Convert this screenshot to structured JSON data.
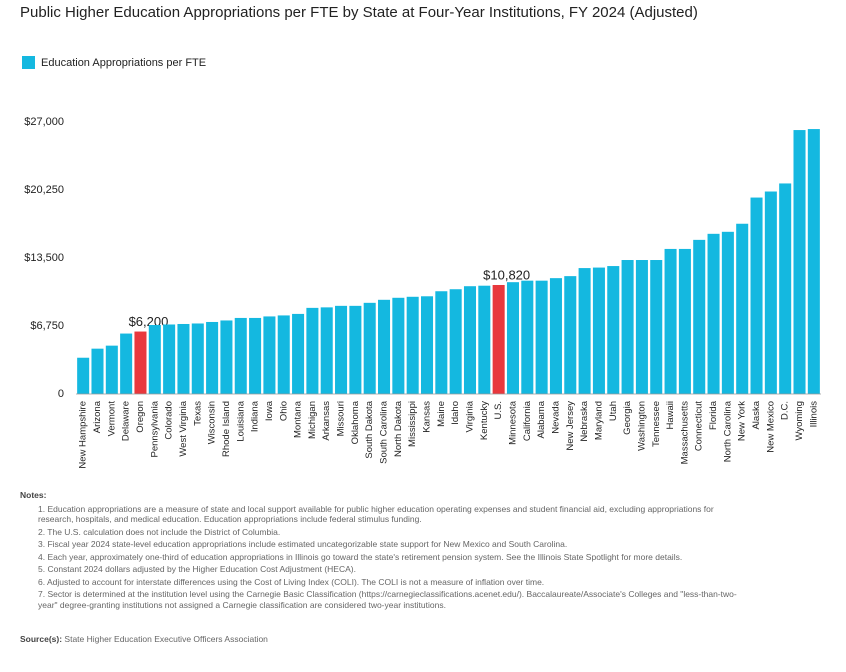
{
  "chart_data": {
    "type": "bar",
    "title": "Public Higher Education Appropriations per FTE by State at Four-Year Institutions, FY 2024 (Adjusted)",
    "categories": [
      "New Hampshire",
      "Arizona",
      "Vermont",
      "Delaware",
      "Oregon",
      "Pennsylvania",
      "Colorado",
      "West Virginia",
      "Texas",
      "Wisconsin",
      "Rhode Island",
      "Louisiana",
      "Indiana",
      "Iowa",
      "Ohio",
      "Montana",
      "Michigan",
      "Arkansas",
      "Missouri",
      "Oklahoma",
      "South Dakota",
      "South Carolina",
      "North Dakota",
      "Mississippi",
      "Kansas",
      "Maine",
      "Idaho",
      "Virginia",
      "Kentucky",
      "U.S.",
      "Minnesota",
      "California",
      "Alabama",
      "Nevada",
      "New Jersey",
      "Nebraska",
      "Maryland",
      "Utah",
      "Georgia",
      "Washington",
      "Tennessee",
      "Hawaii",
      "Massachusetts",
      "Connecticut",
      "Florida",
      "North Carolina",
      "New York",
      "Alaska",
      "New Mexico",
      "D.C.",
      "Wyoming",
      "Illinois"
    ],
    "series": [
      {
        "name": "Education Appropriations per FTE",
        "color": "#14b8e0",
        "values": [
          3600,
          4500,
          4800,
          6000,
          6200,
          6850,
          6900,
          6950,
          7000,
          7150,
          7300,
          7550,
          7550,
          7700,
          7800,
          7950,
          8550,
          8600,
          8750,
          8750,
          9050,
          9350,
          9550,
          9650,
          9700,
          10200,
          10400,
          10700,
          10750,
          10820,
          11100,
          11250,
          11250,
          11500,
          11700,
          12500,
          12550,
          12700,
          13300,
          13300,
          13300,
          14400,
          14400,
          15300,
          15900,
          16100,
          16900,
          19500,
          20100,
          20900,
          26200,
          26300
        ],
        "colors": [
          "#14b8e0",
          "#14b8e0",
          "#14b8e0",
          "#14b8e0",
          "#e8383d",
          "#14b8e0",
          "#14b8e0",
          "#14b8e0",
          "#14b8e0",
          "#14b8e0",
          "#14b8e0",
          "#14b8e0",
          "#14b8e0",
          "#14b8e0",
          "#14b8e0",
          "#14b8e0",
          "#14b8e0",
          "#14b8e0",
          "#14b8e0",
          "#14b8e0",
          "#14b8e0",
          "#14b8e0",
          "#14b8e0",
          "#14b8e0",
          "#14b8e0",
          "#14b8e0",
          "#14b8e0",
          "#14b8e0",
          "#14b8e0",
          "#e8383d",
          "#14b8e0",
          "#14b8e0",
          "#14b8e0",
          "#14b8e0",
          "#14b8e0",
          "#14b8e0",
          "#14b8e0",
          "#14b8e0",
          "#14b8e0",
          "#14b8e0",
          "#14b8e0",
          "#14b8e0",
          "#14b8e0",
          "#14b8e0",
          "#14b8e0",
          "#14b8e0",
          "#14b8e0",
          "#14b8e0",
          "#14b8e0",
          "#14b8e0",
          "#14b8e0",
          "#14b8e0"
        ],
        "value_labels": [
          null,
          null,
          null,
          null,
          "$6,200",
          null,
          null,
          null,
          null,
          null,
          null,
          null,
          null,
          null,
          null,
          null,
          null,
          null,
          null,
          null,
          null,
          null,
          null,
          null,
          null,
          null,
          null,
          null,
          null,
          "$10,820",
          null,
          null,
          null,
          null,
          null,
          null,
          null,
          null,
          null,
          null,
          null,
          null,
          null,
          null,
          null,
          null,
          null,
          null,
          null,
          null,
          null,
          null
        ]
      }
    ],
    "ylim": [
      0,
      27000
    ],
    "yticks": [
      0,
      {
        "value": 6750,
        "label": "$6,750"
      },
      {
        "value": 13500,
        "label": "$13,500"
      },
      {
        "value": 20250,
        "label": "$20,250"
      },
      {
        "value": 27000,
        "label": "$27,000"
      }
    ],
    "grid": false,
    "legend": "top-left"
  },
  "notes": {
    "heading": "Notes:",
    "items": [
      "1. Education appropriations are a measure of state and local support available for public higher education operating expenses and student financial aid, excluding appropriations for research, hospitals, and medical education. Education appropriations include federal stimulus funding.",
      "2. The U.S. calculation does not include the District of Columbia.",
      "3. Fiscal year 2024 state-level education appropriations include estimated uncategorizable state support for New Mexico and South Carolina.",
      "4. Each year, approximately one-third of education appropriations in Illinois go toward the state's retirement pension system. See the Illinois State Spotlight for more details.",
      "5. Constant 2024 dollars adjusted by the Higher Education Cost Adjustment (HECA).",
      "6. Adjusted to account for interstate differences using the Cost of Living Index (COLI). The COLI is not a measure of inflation over time.",
      "7. Sector is determined at the institution level using the Carnegie Basic Classification (https://carnegieclassifications.acenet.edu/). Baccalaureate/Associate's Colleges and \"less-than-two-year\" degree-granting institutions not assigned a Carnegie classification are considered two-year institutions."
    ],
    "source_label": "Source(s):",
    "source": "State Higher Education Executive Officers Association"
  }
}
